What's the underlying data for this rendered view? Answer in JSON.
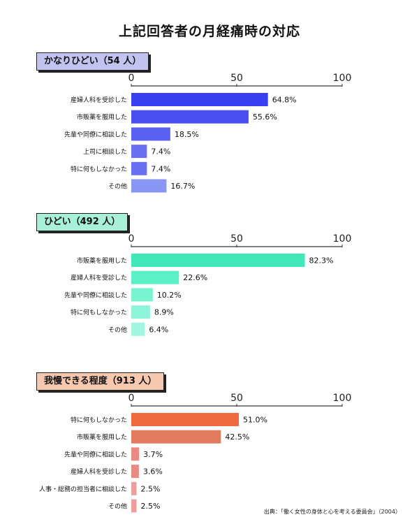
{
  "title": "上記回答者の月経痛時の対応",
  "source": "出典：「働く女性の身体と心を考える委員会」（2004）",
  "chart_data": [
    {
      "type": "bar",
      "label": "かなりひどい（54 人）",
      "label_bg": "#c3c3f0",
      "xlim": [
        0,
        100
      ],
      "ticks": [
        0,
        50,
        100
      ],
      "categories": [
        "産婦人科を受診した",
        "市販薬を服用した",
        "先輩や同僚に相談した",
        "上司に相談した",
        "特に何もしなかった",
        "その他"
      ],
      "values": [
        64.8,
        55.6,
        18.5,
        7.4,
        7.4,
        16.7
      ],
      "value_labels": [
        "64.8%",
        "55.6%",
        "18.5%",
        "7.4%",
        "7.4%",
        "16.7%"
      ],
      "colors": [
        "#3a3ff0",
        "#4a4ff0",
        "#5a60f0",
        "#6a70f2",
        "#6a70f2",
        "#8a96f4"
      ]
    },
    {
      "type": "bar",
      "label": "ひどい（492 人）",
      "label_bg": "#a8f0da",
      "xlim": [
        0,
        100
      ],
      "ticks": [
        0,
        50,
        100
      ],
      "categories": [
        "市販薬を服用した",
        "産婦人科を受診した",
        "先輩や同僚に相談した",
        "特に何もしなかった",
        "その他"
      ],
      "values": [
        82.3,
        22.6,
        10.2,
        8.9,
        6.4
      ],
      "value_labels": [
        "82.3%",
        "22.6%",
        "10.2%",
        "8.9%",
        "6.4%"
      ],
      "colors": [
        "#40e8b8",
        "#5cf0c6",
        "#78f4d0",
        "#8ef4d8",
        "#a2f6e0"
      ]
    },
    {
      "type": "bar",
      "label": "我慢できる程度（913 人）",
      "label_bg": "#f6c8b0",
      "xlim": [
        0,
        100
      ],
      "ticks": [
        0,
        50,
        100
      ],
      "categories": [
        "特に何もしなかった",
        "市販薬を服用した",
        "先輩や同僚に相談した",
        "産婦人科を受診した",
        "人事・総務の担当者に相談した",
        "その他"
      ],
      "values": [
        51.0,
        42.5,
        3.7,
        3.6,
        2.5,
        2.5
      ],
      "value_labels": [
        "51.0%",
        "42.5%",
        "3.7%",
        "3.6%",
        "2.5%",
        "2.5%"
      ],
      "colors": [
        "#ef6a3e",
        "#e27a5e",
        "#ea8a80",
        "#ea8a80",
        "#eaa0a0",
        "#eaa0a0"
      ]
    }
  ]
}
